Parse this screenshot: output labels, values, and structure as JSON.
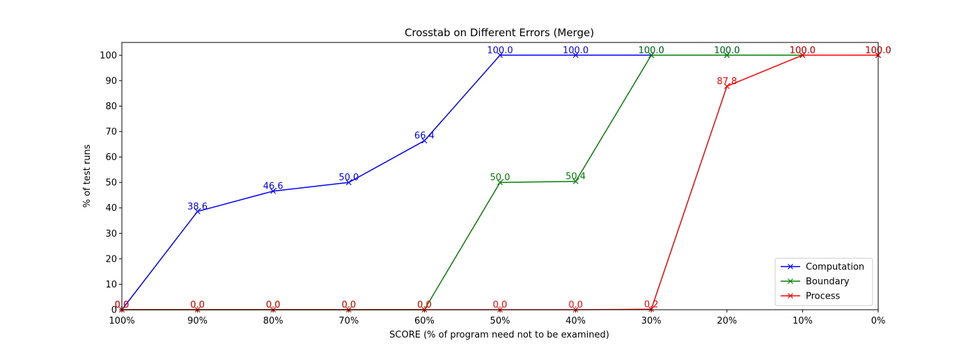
{
  "chart_data": {
    "type": "line",
    "title": "Crosstab on Different Errors (Merge)",
    "xlabel": "SCORE (% of program need not to be examined)",
    "ylabel": "% of test runs",
    "categories": [
      "100%",
      "90%",
      "80%",
      "70%",
      "60%",
      "50%",
      "40%",
      "30%",
      "20%",
      "10%",
      "0%"
    ],
    "ylim": [
      0,
      105
    ],
    "yticks": [
      0,
      10,
      20,
      30,
      40,
      50,
      60,
      70,
      80,
      90,
      100
    ],
    "grid": false,
    "legend_position": "bottom-right",
    "marker": "x",
    "series": [
      {
        "name": "Computation",
        "color": "#0000ff",
        "values": [
          0.0,
          38.6,
          46.6,
          50.0,
          66.4,
          100.0,
          100.0,
          100.0,
          100.0,
          100.0,
          100.0
        ]
      },
      {
        "name": "Boundary",
        "color": "#008000",
        "values": [
          0.0,
          0.0,
          0.0,
          0.0,
          0.0,
          50.0,
          50.4,
          100.0,
          100.0,
          100.0,
          100.0
        ]
      },
      {
        "name": "Process",
        "color": "#ff0000",
        "values": [
          0.0,
          0.0,
          0.0,
          0.0,
          0.0,
          0.0,
          0.0,
          0.2,
          87.8,
          100.0,
          100.0
        ]
      }
    ]
  }
}
